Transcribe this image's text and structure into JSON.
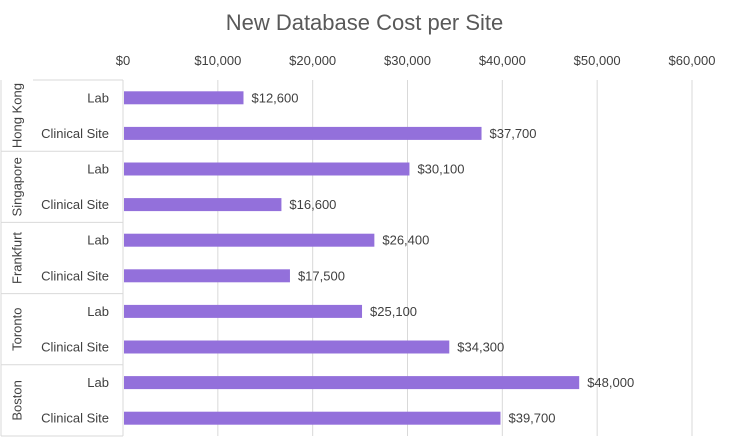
{
  "chart_data": {
    "type": "bar",
    "orientation": "horizontal",
    "title": "New Database Cost per Site",
    "xlabel": "",
    "ylabel": "",
    "xlim": [
      0,
      60000
    ],
    "x_ticks": [
      "$0",
      "$10,000",
      "$20,000",
      "$30,000",
      "$40,000",
      "$50,000",
      "$60,000"
    ],
    "x_axis_position": "top",
    "grid": "vertical",
    "legend": "none",
    "bar_color": "#9370DB",
    "groups": [
      {
        "name": "Hong Kong",
        "bars": [
          {
            "label": "Lab",
            "value": 12600,
            "display": "$12,600"
          },
          {
            "label": "Clinical Site",
            "value": 37700,
            "display": "$37,700"
          }
        ]
      },
      {
        "name": "Singapore",
        "bars": [
          {
            "label": "Lab",
            "value": 30100,
            "display": "$30,100"
          },
          {
            "label": "Clinical Site",
            "value": 16600,
            "display": "$16,600"
          }
        ]
      },
      {
        "name": "Frankfurt",
        "bars": [
          {
            "label": "Lab",
            "value": 26400,
            "display": "$26,400"
          },
          {
            "label": "Clinical Site",
            "value": 17500,
            "display": "$17,500"
          }
        ]
      },
      {
        "name": "Toronto",
        "bars": [
          {
            "label": "Lab",
            "value": 25100,
            "display": "$25,100"
          },
          {
            "label": "Clinical Site",
            "value": 34300,
            "display": "$34,300"
          }
        ]
      },
      {
        "name": "Boston",
        "bars": [
          {
            "label": "Lab",
            "value": 48000,
            "display": "$48,000"
          },
          {
            "label": "Clinical Site",
            "value": 39700,
            "display": "$39,700"
          }
        ]
      }
    ]
  }
}
